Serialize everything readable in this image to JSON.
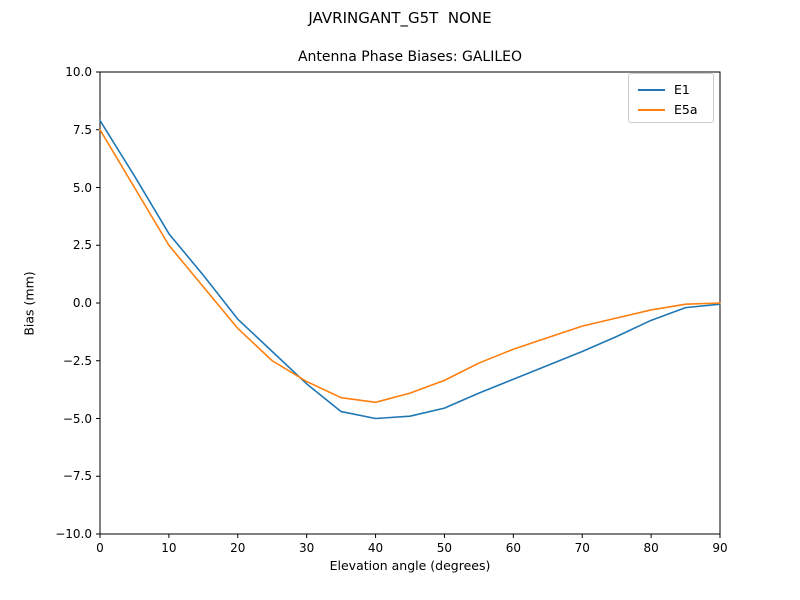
{
  "figure": {
    "suptitle": "JAVRINGANT_G5T  NONE"
  },
  "chart_data": {
    "type": "line",
    "suptitle": "JAVRINGANT_G5T  NONE",
    "title": "Antenna Phase Biases: GALILEO",
    "xlabel": "Elevation angle (degrees)",
    "ylabel": "Bias (mm)",
    "xlim": [
      0,
      90
    ],
    "ylim": [
      -10,
      10
    ],
    "xticks": [
      0,
      10,
      20,
      30,
      40,
      50,
      60,
      70,
      80,
      90
    ],
    "xtick_labels": [
      "0",
      "10",
      "20",
      "30",
      "40",
      "50",
      "60",
      "70",
      "80",
      "90"
    ],
    "yticks": [
      10.0,
      7.5,
      5.0,
      2.5,
      0.0,
      -2.5,
      -5.0,
      -7.5,
      -10.0
    ],
    "ytick_labels": [
      "10.0",
      "7.5",
      "5.0",
      "2.5",
      "0.0",
      "−2.5",
      "−5.0",
      "−7.5",
      "−10.0"
    ],
    "grid": false,
    "legend_position": "upper right",
    "x": [
      0,
      5,
      10,
      15,
      20,
      25,
      30,
      35,
      40,
      45,
      50,
      55,
      60,
      65,
      70,
      75,
      80,
      85,
      90
    ],
    "series": [
      {
        "name": "E1",
        "color": "#1f77b4",
        "values": [
          7.9,
          5.5,
          3.0,
          1.2,
          -0.7,
          -2.1,
          -3.5,
          -4.7,
          -5.0,
          -4.9,
          -4.55,
          -3.9,
          -3.3,
          -2.7,
          -2.1,
          -1.45,
          -0.75,
          -0.2,
          -0.05
        ]
      },
      {
        "name": "E5a",
        "color": "#ff7f0e",
        "values": [
          7.5,
          5.0,
          2.5,
          0.7,
          -1.1,
          -2.5,
          -3.4,
          -4.1,
          -4.3,
          -3.9,
          -3.35,
          -2.6,
          -2.0,
          -1.5,
          -1.0,
          -0.65,
          -0.3,
          -0.05,
          0.0
        ]
      }
    ]
  }
}
